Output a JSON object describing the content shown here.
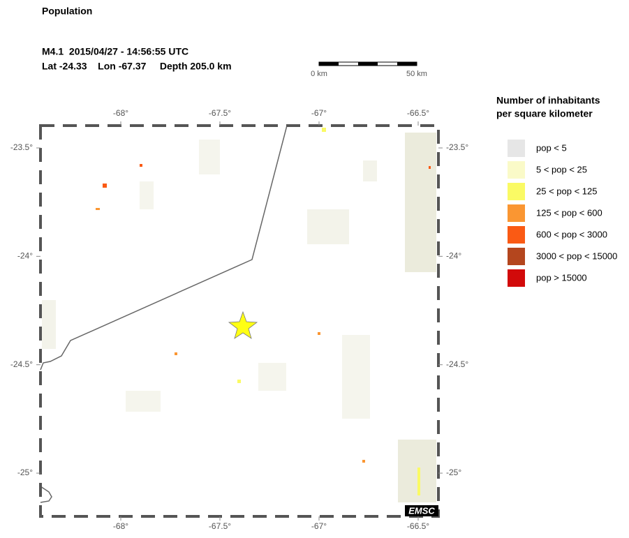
{
  "header": {
    "title": "Population",
    "event": "M4.1  2015/04/27 - 14:56:55 UTC",
    "location": "Lat -24.33    Lon -67.37     Depth 205.0 km"
  },
  "scale_bar": {
    "start": "0 km",
    "end": "50 km"
  },
  "map": {
    "lon_ticks": [
      {
        "value": -68,
        "label": "-68°"
      },
      {
        "value": -67.5,
        "label": "-67.5°"
      },
      {
        "value": -67,
        "label": "-67°"
      },
      {
        "value": -66.5,
        "label": "-66.5°"
      }
    ],
    "lat_ticks": [
      {
        "value": -23.5,
        "label": "-23.5°"
      },
      {
        "value": -24,
        "label": "-24°"
      },
      {
        "value": -24.5,
        "label": "-24.5°"
      },
      {
        "value": -25,
        "label": "-25°"
      }
    ],
    "credit": "EMSC"
  },
  "legend": {
    "title": [
      "Number of inhabitants",
      "per square kilometer"
    ],
    "items": [
      {
        "label": "pop < 5",
        "color": "#e6e6e6"
      },
      {
        "label": "5 < pop < 25",
        "color": "#fafac8"
      },
      {
        "label": "25 < pop < 125",
        "color": "#fafa64"
      },
      {
        "label": "125 < pop < 600",
        "color": "#fa9632"
      },
      {
        "label": "600 < pop < 3000",
        "color": "#fa5a14"
      },
      {
        "label": "3000 < pop < 15000",
        "color": "#b4461e"
      },
      {
        "label": "pop > 15000",
        "color": "#d20a0a"
      }
    ]
  }
}
